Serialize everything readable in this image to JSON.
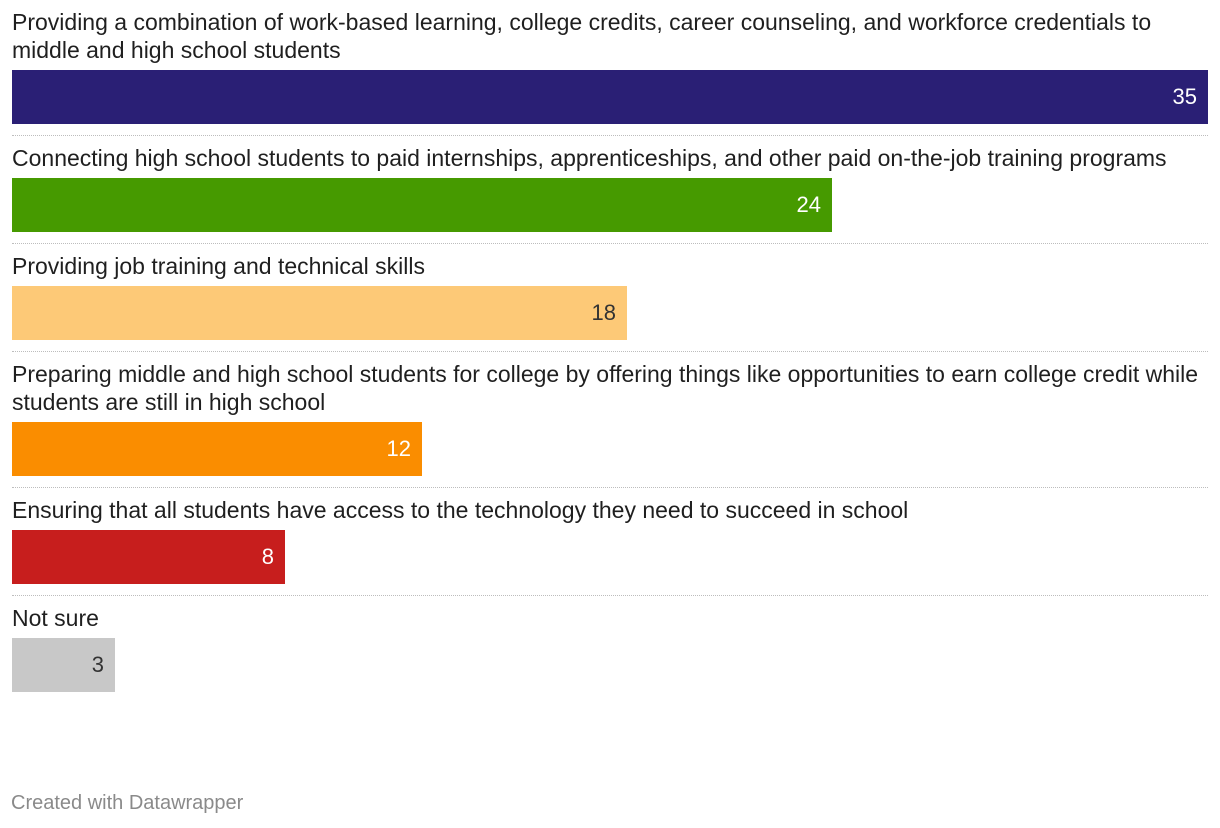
{
  "chart_data": {
    "type": "bar",
    "orientation": "horizontal",
    "categories": [
      "Providing a combination of work-based learning, college credits, career counseling, and workforce credentials to middle and high school students",
      "Connecting high school students to paid internships, apprenticeships, and other paid on-the-job training programs",
      "Providing job training and technical skills",
      "Preparing middle and high school students for college by offering things like opportunities to earn college credit while students are still in high school",
      "Ensuring that all students have access to the technology they need to succeed in school",
      "Not sure"
    ],
    "values": [
      35,
      24,
      18,
      12,
      8,
      3
    ],
    "value_labels": [
      "35",
      "24",
      "18",
      "12",
      "8",
      "3"
    ],
    "colors": [
      "#2a1f75",
      "#469a00",
      "#fdc977",
      "#fa8d00",
      "#c71e1d",
      "#c8c8c8"
    ],
    "value_label_colors": [
      "#ffffff",
      "#ffffff",
      "#333333",
      "#ffffff",
      "#ffffff",
      "#333333"
    ],
    "xlim": [
      0,
      35
    ],
    "grid": false,
    "data_labels": "inside-end",
    "title": "",
    "xlabel": "",
    "ylabel": ""
  },
  "footer": {
    "credit": "Created with Datawrapper"
  }
}
